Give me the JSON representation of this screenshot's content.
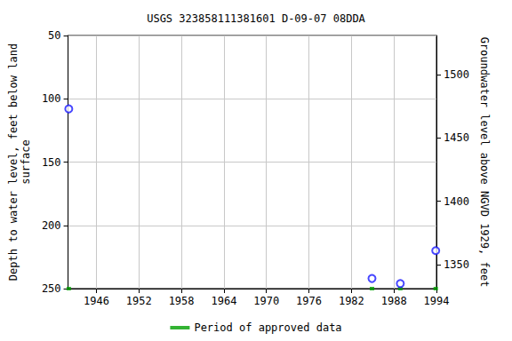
{
  "chart_data": {
    "type": "scatter",
    "title": "USGS 323858111381601 D-09-07 08DDA",
    "y_label": "Depth to water level, feet below land\nsurface",
    "y2_label": "Groundwater level above NGVD 1929, feet",
    "x": [
      1942.1,
      1984.9,
      1988.9,
      1993.9
    ],
    "series": [
      {
        "values": [
          108,
          242,
          246,
          220
        ],
        "color": "#1a1aff",
        "marker": "circle-open"
      },
      {
        "name": "Period of approved data",
        "values": [
          250,
          250,
          250,
          250
        ],
        "color": "#00a000",
        "marker": "square",
        "type": "line"
      }
    ],
    "xlim": [
      1942,
      1994
    ],
    "xticks": [
      1946,
      1952,
      1958,
      1964,
      1970,
      1976,
      1982,
      1988,
      1994
    ],
    "ylim": [
      250,
      50
    ],
    "yticks": [
      50,
      100,
      150,
      200,
      250
    ],
    "y2lim": [
      1331,
      1531
    ],
    "y2ticks": [
      1350,
      1400,
      1450,
      1500
    ],
    "grid": true,
    "legend": "bottom"
  }
}
